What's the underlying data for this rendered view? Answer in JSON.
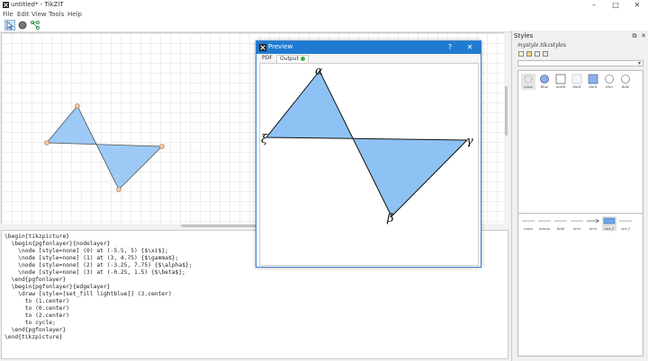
{
  "window": {
    "title": "untitled* - TikZiT",
    "minimize_glyph": "–",
    "maximize_glyph": "□",
    "close_glyph": "✕"
  },
  "menu": [
    "File",
    "Edit",
    "View",
    "Tools",
    "Help"
  ],
  "toolbar": {
    "tools": [
      {
        "name": "select-tool",
        "icon": "pointer-icon",
        "active": true
      },
      {
        "name": "vertex-tool",
        "icon": "circle-icon",
        "active": false
      },
      {
        "name": "edge-tool",
        "icon": "edge-icon",
        "active": false
      }
    ]
  },
  "code": {
    "lines": [
      "\\begin{tikzpicture}",
      "  \\begin{pgfonlayer}{nodelayer}",
      "    \\node [style=none] (0) at (-5.5, 5) {$\\xi$};",
      "    \\node [style=none] (1) at (3, 4.75) {$\\gamma$};",
      "    \\node [style=none] (2) at (-3.25, 7.75) {$\\alpha$};",
      "    \\node [style=none] (3) at (-0.25, 1.5) {$\\beta$};",
      "  \\end{pgfonlayer}",
      "  \\begin{pgfonlayer}{edgelayer}",
      "    \\draw [style=[set_fill lightblue]] (3.center)",
      "      to (1.center)",
      "      to (0.center)",
      "      to (2.center)",
      "      to cycle;",
      "  \\end{pgfonlayer}",
      "\\end{tikzpicture}"
    ]
  },
  "preview": {
    "title": "Preview",
    "help_glyph": "?",
    "close_glyph": "✕",
    "tabs": [
      "PDF",
      "Output"
    ],
    "labels": {
      "alpha": "α",
      "xi": "ξ",
      "gamma": "γ",
      "beta": "β"
    }
  },
  "styles": {
    "title": "Styles",
    "file": "mystyle.tikzstyles",
    "node_styles": [
      {
        "label": "none",
        "shape": "none",
        "fill": "#e0e0e0"
      },
      {
        "label": "blue",
        "shape": "circle",
        "fill": "#8aaef0"
      },
      {
        "label": "mark",
        "shape": "square",
        "fill": "#ffffff"
      },
      {
        "label": "dark",
        "shape": "square",
        "fill": "#f4f4ff"
      },
      {
        "label": "dark",
        "shape": "square",
        "fill": "#8aaef0"
      },
      {
        "label": "dim",
        "shape": "circle",
        "fill": "#ffffff"
      },
      {
        "label": "dole",
        "shape": "circle",
        "fill": "#ffffff"
      }
    ],
    "edge_styles": [
      {
        "label": "none",
        "kind": "line"
      },
      {
        "label": "minus",
        "kind": "line"
      },
      {
        "label": "dole",
        "kind": "line"
      },
      {
        "label": "arro",
        "kind": "line"
      },
      {
        "label": "arro",
        "kind": "arrow"
      },
      {
        "label": "set_f",
        "kind": "fill",
        "active": true
      },
      {
        "label": "set_f",
        "kind": "line"
      }
    ]
  },
  "colors": {
    "accent": "#1f7bd1",
    "fill": "#8ec2f4"
  }
}
